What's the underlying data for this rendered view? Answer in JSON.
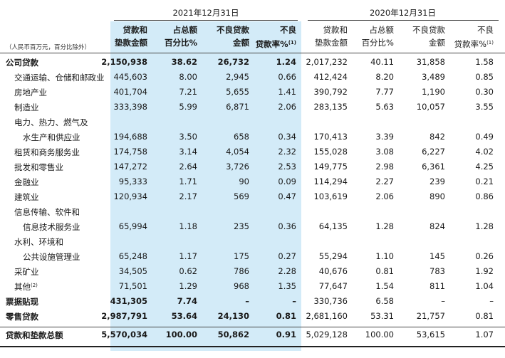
{
  "unit_note": "（人民币百万元，百分比除外）",
  "periods": [
    "2021年12月31日",
    "2020年12月31日"
  ],
  "column_headers": [
    {
      "line1": "贷款和",
      "line2": "垫款金额",
      "sup": ""
    },
    {
      "line1": "占总额",
      "line2": "百分比%",
      "sup": ""
    },
    {
      "line1": "不良贷款",
      "line2": "金额",
      "sup": ""
    },
    {
      "line1": "不良",
      "line2": "贷款率%",
      "sup": "(1)"
    },
    {
      "line1": "贷款和",
      "line2": "垫款金额",
      "sup": ""
    },
    {
      "line1": "占总额",
      "line2": "百分比%",
      "sup": ""
    },
    {
      "line1": "不良贷款",
      "line2": "金额",
      "sup": ""
    },
    {
      "line1": "不良",
      "line2": "贷款率%",
      "sup": "(1)"
    }
  ],
  "rows": [
    {
      "label": "公司贷款",
      "values": [
        "2,150,938",
        "38.62",
        "26,732",
        "1.24",
        "2,017,232",
        "40.11",
        "31,858",
        "1.58"
      ]
    },
    {
      "label": "交通运输、仓储和邮政业",
      "values": [
        "445,603",
        "8.00",
        "2,945",
        "0.66",
        "412,424",
        "8.20",
        "3,489",
        "0.85"
      ]
    },
    {
      "label": "房地产业",
      "values": [
        "401,704",
        "7.21",
        "5,655",
        "1.41",
        "390,792",
        "7.77",
        "1,190",
        "0.30"
      ]
    },
    {
      "label": "制造业",
      "values": [
        "333,398",
        "5.99",
        "6,871",
        "2.06",
        "283,135",
        "5.63",
        "10,057",
        "3.55"
      ]
    },
    {
      "label": "电力、热力、燃气及",
      "label2": "水生产和供应业",
      "values": [
        "194,688",
        "3.50",
        "658",
        "0.34",
        "170,413",
        "3.39",
        "842",
        "0.49"
      ]
    },
    {
      "label": "租赁和商务服务业",
      "values": [
        "174,758",
        "3.14",
        "4,054",
        "2.32",
        "155,028",
        "3.08",
        "6,227",
        "4.02"
      ]
    },
    {
      "label": "批发和零售业",
      "values": [
        "147,272",
        "2.64",
        "3,726",
        "2.53",
        "149,775",
        "2.98",
        "6,361",
        "4.25"
      ]
    },
    {
      "label": "金融业",
      "values": [
        "95,333",
        "1.71",
        "90",
        "0.09",
        "114,294",
        "2.27",
        "239",
        "0.21"
      ]
    },
    {
      "label": "建筑业",
      "values": [
        "120,934",
        "2.17",
        "569",
        "0.47",
        "103,619",
        "2.06",
        "890",
        "0.86"
      ]
    },
    {
      "label": "信息传输、软件和",
      "label2": "信息技术服务业",
      "values": [
        "65,994",
        "1.18",
        "235",
        "0.36",
        "64,135",
        "1.28",
        "824",
        "1.28"
      ]
    },
    {
      "label": "水利、环境和",
      "label2": "公共设施管理业",
      "values": [
        "65,248",
        "1.17",
        "175",
        "0.27",
        "55,294",
        "1.10",
        "145",
        "0.26"
      ]
    },
    {
      "label": "采矿业",
      "values": [
        "34,505",
        "0.62",
        "786",
        "2.28",
        "40,676",
        "0.81",
        "783",
        "1.92"
      ]
    },
    {
      "label": "其他",
      "sup": "(2)",
      "values": [
        "71,501",
        "1.29",
        "968",
        "1.35",
        "77,647",
        "1.54",
        "811",
        "1.04"
      ]
    },
    {
      "label": "票据贴现",
      "values": [
        "431,305",
        "7.74",
        "–",
        "–",
        "330,736",
        "6.58",
        "–",
        "–"
      ]
    },
    {
      "label": "零售贷款",
      "values": [
        "2,987,791",
        "53.64",
        "24,130",
        "0.81",
        "2,681,160",
        "53.31",
        "21,757",
        "0.81"
      ]
    },
    {
      "label": "贷款和垫款总额",
      "values": [
        "5,570,034",
        "100.00",
        "50,862",
        "0.91",
        "5,029,128",
        "100.00",
        "53,615",
        "1.07"
      ]
    }
  ]
}
